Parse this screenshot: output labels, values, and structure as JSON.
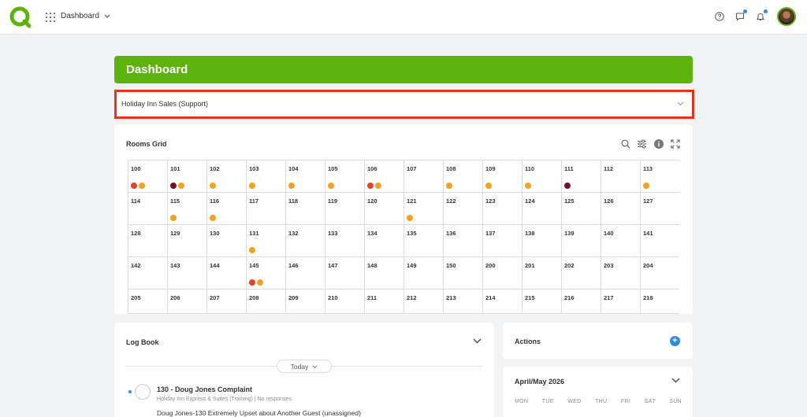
{
  "nav": {
    "title": "Dashboard"
  },
  "colors": {
    "accent": "#5db30c",
    "highlight_border": "#e8331c",
    "dot_red": "#e8402a",
    "dot_orange": "#f5a11c",
    "dot_maroon": "#7a1025",
    "link_blue": "#2f8ddf"
  },
  "header": {
    "title": "Dashboard"
  },
  "property_select": {
    "value": "Holiday Inn Sales (Support)"
  },
  "rooms_grid": {
    "title": "Rooms Grid",
    "rooms": [
      {
        "num": "100",
        "dots": [
          "red",
          "orange"
        ]
      },
      {
        "num": "101",
        "dots": [
          "maroon",
          "orange"
        ]
      },
      {
        "num": "102",
        "dots": [
          "orange"
        ]
      },
      {
        "num": "103",
        "dots": [
          "orange"
        ]
      },
      {
        "num": "104",
        "dots": [
          "orange"
        ]
      },
      {
        "num": "105",
        "dots": [
          "orange"
        ]
      },
      {
        "num": "106",
        "dots": [
          "red",
          "orange"
        ]
      },
      {
        "num": "107",
        "dots": []
      },
      {
        "num": "108",
        "dots": [
          "orange"
        ]
      },
      {
        "num": "109",
        "dots": [
          "orange"
        ]
      },
      {
        "num": "110",
        "dots": [
          "orange"
        ]
      },
      {
        "num": "111",
        "dots": [
          "maroon"
        ]
      },
      {
        "num": "112",
        "dots": []
      },
      {
        "num": "113",
        "dots": [
          "orange"
        ]
      },
      {
        "num": "114",
        "dots": []
      },
      {
        "num": "115",
        "dots": [
          "orange"
        ]
      },
      {
        "num": "116",
        "dots": [
          "orange"
        ]
      },
      {
        "num": "117",
        "dots": []
      },
      {
        "num": "118",
        "dots": []
      },
      {
        "num": "119",
        "dots": []
      },
      {
        "num": "120",
        "dots": []
      },
      {
        "num": "121",
        "dots": [
          "orange"
        ]
      },
      {
        "num": "122",
        "dots": []
      },
      {
        "num": "123",
        "dots": []
      },
      {
        "num": "124",
        "dots": []
      },
      {
        "num": "125",
        "dots": []
      },
      {
        "num": "126",
        "dots": []
      },
      {
        "num": "127",
        "dots": []
      },
      {
        "num": "128",
        "dots": []
      },
      {
        "num": "129",
        "dots": []
      },
      {
        "num": "130",
        "dots": []
      },
      {
        "num": "131",
        "dots": [
          "orange"
        ]
      },
      {
        "num": "132",
        "dots": []
      },
      {
        "num": "133",
        "dots": []
      },
      {
        "num": "134",
        "dots": []
      },
      {
        "num": "135",
        "dots": []
      },
      {
        "num": "136",
        "dots": []
      },
      {
        "num": "137",
        "dots": []
      },
      {
        "num": "138",
        "dots": []
      },
      {
        "num": "139",
        "dots": []
      },
      {
        "num": "140",
        "dots": []
      },
      {
        "num": "141",
        "dots": []
      },
      {
        "num": "142",
        "dots": []
      },
      {
        "num": "143",
        "dots": []
      },
      {
        "num": "144",
        "dots": []
      },
      {
        "num": "145",
        "dots": [
          "red",
          "orange"
        ]
      },
      {
        "num": "146",
        "dots": []
      },
      {
        "num": "147",
        "dots": []
      },
      {
        "num": "148",
        "dots": []
      },
      {
        "num": "149",
        "dots": []
      },
      {
        "num": "150",
        "dots": []
      },
      {
        "num": "200",
        "dots": []
      },
      {
        "num": "201",
        "dots": []
      },
      {
        "num": "202",
        "dots": []
      },
      {
        "num": "203",
        "dots": []
      },
      {
        "num": "204",
        "dots": []
      },
      {
        "num": "205",
        "dots": []
      },
      {
        "num": "206",
        "dots": []
      },
      {
        "num": "207",
        "dots": []
      },
      {
        "num": "208",
        "dots": []
      },
      {
        "num": "209",
        "dots": []
      },
      {
        "num": "210",
        "dots": []
      },
      {
        "num": "211",
        "dots": []
      },
      {
        "num": "212",
        "dots": []
      },
      {
        "num": "213",
        "dots": []
      },
      {
        "num": "214",
        "dots": []
      },
      {
        "num": "215",
        "dots": []
      },
      {
        "num": "216",
        "dots": []
      },
      {
        "num": "217",
        "dots": []
      },
      {
        "num": "218",
        "dots": []
      }
    ]
  },
  "logbook": {
    "title": "Log Book",
    "filter": "Today",
    "entry": {
      "title": "130 - Doug Jones Complaint",
      "property": "Holiday Inn Express & Suites (Training)",
      "responses": "No responses",
      "text": "Doug Jones-130 Extremely Upset about Another Guest (unassigned)"
    }
  },
  "actions": {
    "title": "Actions"
  },
  "calendar": {
    "title": "April/May 2026",
    "weekdays": [
      "MON",
      "TUE",
      "WED",
      "THU",
      "FRI",
      "SAT",
      "SUN"
    ]
  }
}
